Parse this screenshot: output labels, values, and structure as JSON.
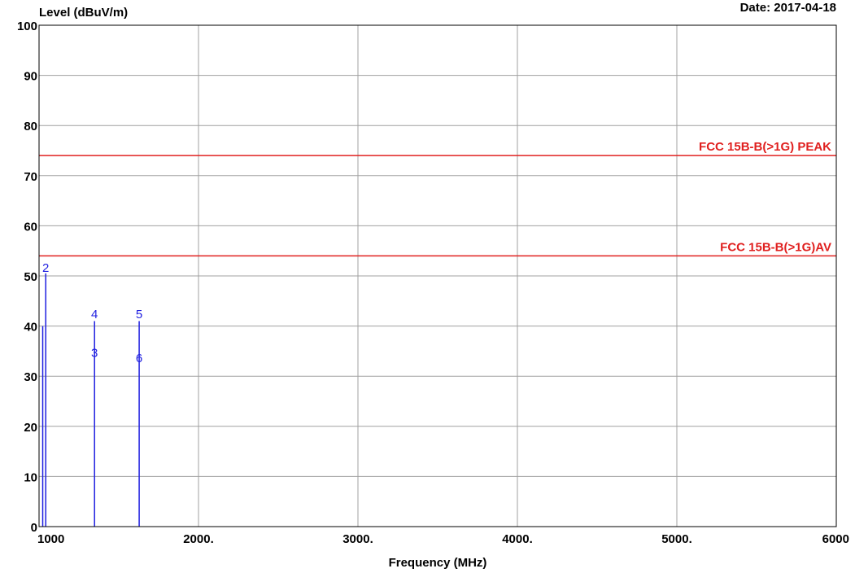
{
  "chart_data": {
    "type": "line",
    "ylabel": "Level (dBuV/m)",
    "xlabel": "Frequency (MHz)",
    "date": "Date: 2017-04-18",
    "xlim": [
      1000,
      6000
    ],
    "ylim": [
      0,
      100
    ],
    "x_ticks": [
      {
        "value": 1000,
        "label": "1000"
      },
      {
        "value": 2000,
        "label": "2000."
      },
      {
        "value": 3000,
        "label": "3000."
      },
      {
        "value": 4000,
        "label": "4000."
      },
      {
        "value": 5000,
        "label": "5000."
      },
      {
        "value": 6000,
        "label": "6000"
      }
    ],
    "y_ticks": [
      {
        "value": 0,
        "label": "0"
      },
      {
        "value": 10,
        "label": "10"
      },
      {
        "value": 20,
        "label": "20"
      },
      {
        "value": 30,
        "label": "30"
      },
      {
        "value": 40,
        "label": "40"
      },
      {
        "value": 50,
        "label": "50"
      },
      {
        "value": 60,
        "label": "60"
      },
      {
        "value": 70,
        "label": "70"
      },
      {
        "value": 80,
        "label": "80"
      },
      {
        "value": 90,
        "label": "90"
      },
      {
        "value": 100,
        "label": "100"
      }
    ],
    "grid": true,
    "limit_lines": [
      {
        "name": "FCC 15B-B(>1G) PEAK",
        "value": 74,
        "color": "#e0201f"
      },
      {
        "name": "FCC 15B-B(>1G)AV",
        "value": 54,
        "color": "#e0201f"
      }
    ],
    "signal_color": "#1f1fe0",
    "signal_lines": [
      {
        "x": 1023,
        "y": 40
      },
      {
        "x": 1042,
        "y": 50.5
      },
      {
        "x": 1348,
        "y": 41
      },
      {
        "x": 1628,
        "y": 41
      }
    ],
    "markers": [
      {
        "label": "2",
        "x": 1042,
        "y": 51.8
      },
      {
        "label": "4",
        "x": 1348,
        "y": 42.5
      },
      {
        "label": "3",
        "x": 1348,
        "y": 34.8
      },
      {
        "label": "5",
        "x": 1628,
        "y": 42.5
      },
      {
        "label": "6",
        "x": 1628,
        "y": 33.8
      }
    ]
  }
}
